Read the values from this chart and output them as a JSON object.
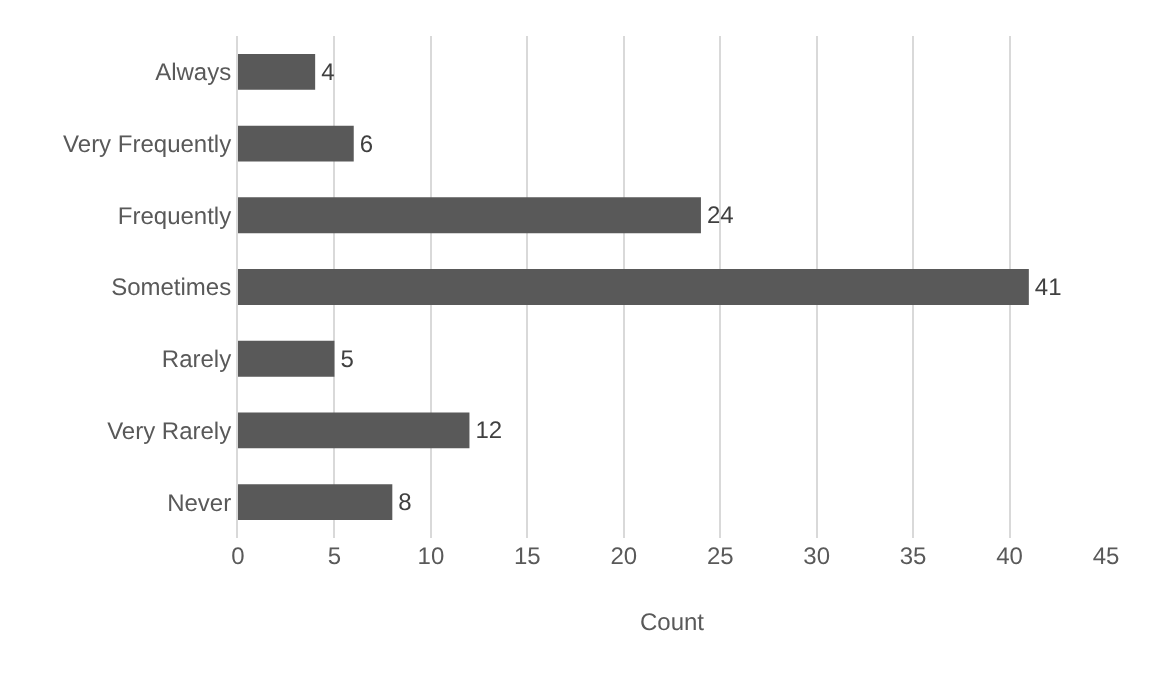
{
  "chart_data": {
    "type": "bar",
    "orientation": "horizontal",
    "xlabel": "Count",
    "categories": [
      "Always",
      "Very Frequently",
      "Frequently",
      "Sometimes",
      "Rarely",
      "Very Rarely",
      "Never"
    ],
    "values": [
      4,
      6,
      24,
      41,
      5,
      12,
      8
    ],
    "color": "#595959",
    "xlim": [
      0,
      45
    ],
    "xticks": [
      0,
      5,
      10,
      15,
      20,
      25,
      30,
      35,
      40,
      45
    ],
    "grid": "x",
    "data_labels": true
  }
}
